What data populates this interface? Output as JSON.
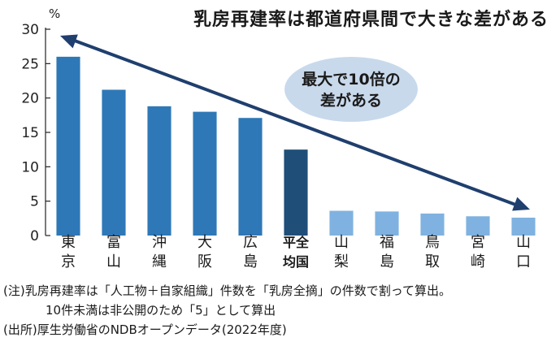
{
  "chart_data": {
    "type": "bar",
    "title": "乳房再建率は都道府県間で大きな差がある",
    "ylabel": "%",
    "ylim": [
      0,
      30
    ],
    "yticks": [
      0,
      5,
      10,
      15,
      20,
      25,
      30
    ],
    "categories": [
      [
        "東",
        "京"
      ],
      [
        "富",
        "山"
      ],
      [
        "沖",
        "縄"
      ],
      [
        "大",
        "阪"
      ],
      [
        "広",
        "島"
      ],
      [
        "平全",
        "均国"
      ],
      [
        "山",
        "梨"
      ],
      [
        "福",
        "島"
      ],
      [
        "鳥",
        "取"
      ],
      [
        "宮",
        "崎"
      ],
      [
        "山",
        "口"
      ]
    ],
    "values": [
      26.0,
      21.2,
      18.8,
      18.0,
      17.1,
      12.5,
      3.6,
      3.5,
      3.2,
      2.8,
      2.6
    ],
    "highlight_index": 5,
    "annotation": [
      "最大で10倍の",
      "差がある"
    ],
    "grid": false,
    "colors": {
      "top": "#2e78b7",
      "average": "#1f4e79",
      "bottom": "#7fb2e0",
      "arrow": "#1f3f6e",
      "bubble": "#c9d9ec"
    }
  },
  "notes": [
    "(注)乳房再建率は「人工物＋自家組織」件数を「乳房全摘」の件数で割って算出。",
    "10件未満は非公開のため「5」として算出",
    "(出所)厚生労働省のNDBオープンデータ(2022年度)"
  ]
}
